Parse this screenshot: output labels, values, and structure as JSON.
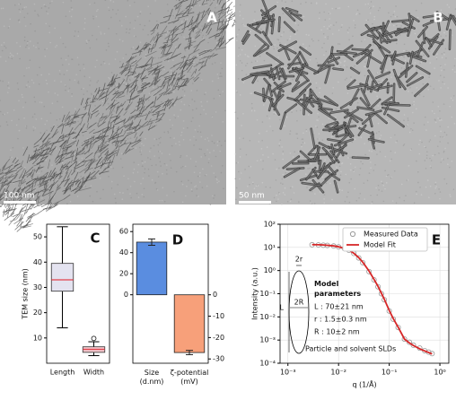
{
  "images": [
    {
      "label": "A",
      "scale_bar": "100 nm"
    },
    {
      "label": "B",
      "scale_bar": "50 nm"
    }
  ],
  "chart_data": [
    {
      "type": "box",
      "label": "C",
      "ylabel": "TEM size (nm)",
      "categories": [
        "Length",
        "Width"
      ],
      "boxes": [
        {
          "whislo": 14,
          "q1": 28.5,
          "med": 33,
          "q3": 39.5,
          "whishi": 54,
          "fliers": [],
          "color": "#e4e3f0"
        },
        {
          "whislo": 3,
          "q1": 4.3,
          "med": 5.5,
          "q3": 6.5,
          "whishi": 8.5,
          "fliers": [
            9.8
          ],
          "color": "#f2c6cc"
        }
      ],
      "median_color": "#e0424b",
      "ylim": [
        0,
        55
      ],
      "yticks": [
        10,
        20,
        30,
        40,
        50
      ]
    },
    {
      "type": "bar",
      "label": "D",
      "categories": [
        "Size (d.nm)",
        "ζ-potential (mV)"
      ],
      "series": [
        {
          "values": [
            50,
            null
          ],
          "errors": [
            3,
            null
          ],
          "color": "#5a8de0"
        },
        {
          "values": [
            null,
            -27
          ],
          "errors": [
            null,
            1
          ],
          "color": "#f7a07a",
          "axis": "y2"
        }
      ],
      "ylim": [
        -65,
        67
      ],
      "yticks": [
        0,
        20,
        40,
        60
      ],
      "y2lim": [
        -32,
        33
      ],
      "y2ticks": [
        0,
        -10,
        -20,
        -30
      ]
    },
    {
      "type": "line",
      "label": "E",
      "xlabel": "q (1/Å)",
      "ylabel": "Intensity (a.u.)",
      "log_x": true,
      "log_y": true,
      "grid": true,
      "legend": "upper right",
      "x": [
        0.003,
        0.004,
        0.005,
        0.006,
        0.008,
        0.01,
        0.013,
        0.016,
        0.02,
        0.025,
        0.03,
        0.04,
        0.05,
        0.06,
        0.07,
        0.08,
        0.1,
        0.12,
        0.15,
        0.2,
        0.25,
        0.3,
        0.4,
        0.5,
        0.6,
        0.7
      ],
      "series": [
        {
          "name": "Measured Data",
          "marker": "o",
          "color": "#9a9a9a",
          "values": [
            13,
            12.8,
            12.5,
            12.2,
            11.5,
            10.5,
            9,
            7.5,
            5.5,
            3.5,
            2.2,
            0.9,
            0.4,
            0.2,
            0.1,
            0.055,
            0.018,
            0.008,
            0.0035,
            0.0011,
            0.0008,
            0.0006,
            0.00045,
            0.00035,
            0.0003,
            0.00026
          ]
        },
        {
          "name": "Model Fit",
          "color": "#d62728",
          "values": [
            13.2,
            13,
            12.7,
            12.3,
            11.6,
            10.6,
            9.1,
            7.6,
            5.6,
            3.6,
            2.3,
            0.95,
            0.42,
            0.21,
            0.105,
            0.058,
            0.019,
            0.0085,
            0.0036,
            0.0011,
            0.00075,
            0.00058,
            0.00042,
            0.00034,
            0.00029,
            0.00025
          ]
        }
      ],
      "annotations": [
        "2r",
        "2R",
        "L",
        "Model parameters",
        "L : 70±21 nm",
        "r : 1.5±0.3 nm",
        "R : 10±2 nm",
        "Particle and solvent SLDs"
      ],
      "xlim": [
        0.0007,
        1.5
      ],
      "xticks": [
        {
          "value": 0.001,
          "label": "10⁻³"
        },
        {
          "value": 0.01,
          "label": "10⁻²"
        },
        {
          "value": 0.1,
          "label": "10⁻¹"
        },
        {
          "value": 1,
          "label": "10⁰"
        }
      ],
      "ylim": [
        0.0001,
        100
      ],
      "yticks": [
        {
          "value": 0.0001,
          "label": "10⁻⁴"
        },
        {
          "value": 0.001,
          "label": "10⁻³"
        },
        {
          "value": 0.01,
          "label": "10⁻²"
        },
        {
          "value": 0.1,
          "label": "10⁻¹"
        },
        {
          "value": 1,
          "label": "10⁰"
        },
        {
          "value": 10,
          "label": "10¹"
        },
        {
          "value": 100,
          "label": "10²"
        }
      ]
    }
  ]
}
